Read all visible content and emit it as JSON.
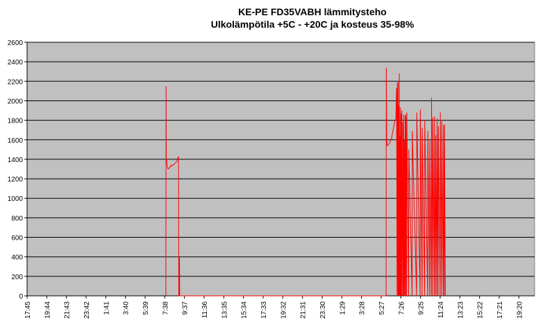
{
  "chart_data": {
    "type": "line",
    "title": "KE-PE FD35VABH lämmitysteho",
    "subtitle": "Ulkolämpötila  +5C - +20C ja kosteus 35-98%",
    "xlabel": "",
    "ylabel": "",
    "ylim": [
      0,
      2600
    ],
    "yticks": [
      0,
      200,
      400,
      600,
      800,
      1000,
      1200,
      1400,
      1600,
      1800,
      2000,
      2200,
      2400,
      2600
    ],
    "x_tick_labels": [
      "17:45",
      "19:44",
      "21:43",
      "23:42",
      "1:41",
      "3:40",
      "5:39",
      "7:38",
      "9:37",
      "11:36",
      "13:35",
      "15:34",
      "17:33",
      "19:32",
      "21:31",
      "23:30",
      "1:29",
      "3:28",
      "5:27",
      "7:26",
      "9:25",
      "11:24",
      "13:23",
      "15:22",
      "17:21",
      "19:20"
    ],
    "x_range_hours": [
      0,
      50.75
    ],
    "grid": true,
    "background": "#c0c0c0",
    "series": [
      {
        "color": "#ff0000",
        "x": [
          13.88,
          13.9,
          13.92,
          14.0,
          14.1,
          14.2,
          14.3,
          14.4,
          14.5,
          14.6,
          14.7,
          14.8,
          15.0,
          15.1,
          15.15,
          15.17,
          15.22,
          15.24,
          15.26,
          35.9,
          35.92,
          35.96,
          36.02,
          36.12,
          36.3,
          36.45,
          36.6,
          36.75,
          36.88,
          36.95,
          37.0,
          37.02,
          37.08,
          37.1,
          37.14,
          37.16,
          37.2,
          37.22,
          37.26,
          37.28,
          37.32,
          37.34,
          37.38,
          37.4,
          37.45,
          37.47,
          37.55,
          37.57,
          37.62,
          37.64,
          37.7,
          37.72,
          37.78,
          37.8,
          37.86,
          37.88,
          37.95,
          37.97,
          38.15,
          38.17,
          38.5,
          38.52,
          38.95,
          38.97,
          39.3,
          39.32,
          39.5,
          39.52,
          39.75,
          39.77,
          40.05,
          40.07,
          40.25,
          40.27,
          40.42,
          40.44,
          40.55,
          40.57,
          40.72,
          40.74,
          40.85,
          40.87,
          40.98,
          41.0,
          41.1,
          41.12,
          41.3,
          41.32,
          41.45,
          41.47,
          41.62,
          41.64,
          41.72,
          41.74,
          41.82,
          41.84
        ],
        "values": [
          0,
          2150,
          1420,
          1330,
          1300,
          1310,
          1320,
          1340,
          1330,
          1340,
          1350,
          1360,
          1380,
          1420,
          1430,
          0,
          0,
          400,
          0,
          0,
          2340,
          1600,
          1540,
          1550,
          1580,
          1620,
          1700,
          1780,
          1820,
          2130,
          0,
          2180,
          0,
          2200,
          0,
          1950,
          0,
          2280,
          0,
          1640,
          0,
          1930,
          0,
          1870,
          0,
          1900,
          0,
          1780,
          0,
          1860,
          0,
          1600,
          0,
          1850,
          0,
          1860,
          0,
          1880,
          0,
          1500,
          0,
          1690,
          0,
          1880,
          0,
          1910,
          0,
          1720,
          0,
          1800,
          0,
          1690,
          0,
          1600,
          0,
          2030,
          0,
          1830,
          0,
          1840,
          0,
          1650,
          0,
          1820,
          0,
          1740,
          0,
          1880,
          0,
          1790,
          0,
          1750,
          0,
          1760,
          0,
          0
        ]
      }
    ]
  }
}
